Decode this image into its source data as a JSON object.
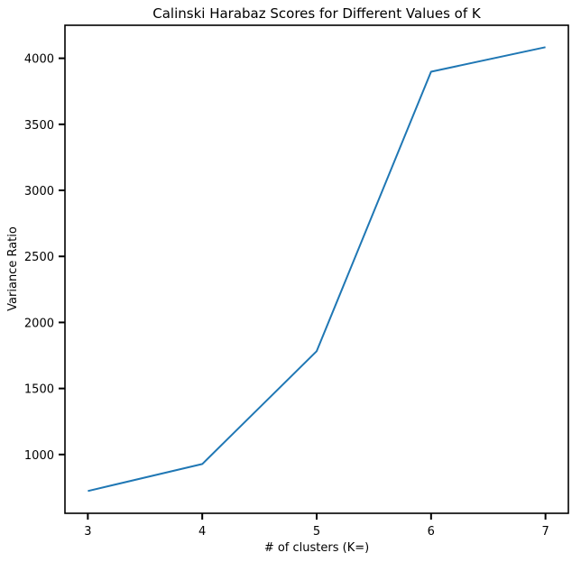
{
  "chart_data": {
    "type": "line",
    "title": "Calinski Harabaz Scores for Different Values of K",
    "xlabel": "# of clusters (K=)",
    "ylabel": "Variance Ratio",
    "x": [
      3,
      4,
      5,
      6,
      7
    ],
    "xlim": [
      2.8,
      7.2
    ],
    "ylim": [
      555,
      4250
    ],
    "xticks": [
      3,
      4,
      5,
      6,
      7
    ],
    "yticks": [
      1000,
      1500,
      2000,
      2500,
      3000,
      3500,
      4000
    ],
    "grid": false,
    "series": [
      {
        "values": [
          724,
          928,
          1782,
          3898,
          4084
        ],
        "color": "#1f77b4"
      }
    ]
  }
}
